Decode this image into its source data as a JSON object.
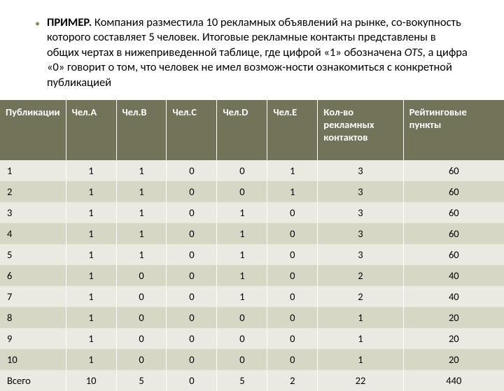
{
  "bullet": {
    "prefix": "ПРИМЕР.",
    "text_part1": " Компания разместила 10 рекламных объявлений на рынке, со-вокупность которого составляет 5 человек. Итоговые рекламные контакты представлены в общих чертах в нижеприведенной таблице, где цифрой «1» обозначена ",
    "italic": "OTS",
    "text_part2": ", а цифра «0» говорит о том, что человек не имел возмож-ности ознакомиться с конкретной публикацией"
  },
  "table": {
    "columns": [
      "Публикации",
      "Чел.A",
      "Чел.B",
      "Чел.C",
      "Чел.D",
      "Чел.E",
      "Кол-во рекламных контактов",
      "Рейтинговые пункты"
    ],
    "col_widths": [
      "13%",
      "10%",
      "10%",
      "10%",
      "10%",
      "10%",
      "17%",
      "20%"
    ],
    "header_bg": "#73735a",
    "header_color": "#ffffff",
    "row_odd_bg": "#eaeae1",
    "row_even_bg": "#d7d7c5",
    "rows": [
      [
        "1",
        "1",
        "1",
        "0",
        "0",
        "1",
        "3",
        "60"
      ],
      [
        "2",
        "1",
        "1",
        "0",
        "0",
        "1",
        "3",
        "60"
      ],
      [
        "3",
        "1",
        "1",
        "0",
        "1",
        "0",
        "3",
        "60"
      ],
      [
        "4",
        "1",
        "1",
        "0",
        "1",
        "0",
        "3",
        "60"
      ],
      [
        "5",
        "1",
        "1",
        "0",
        "1",
        "0",
        "3",
        "60"
      ],
      [
        "6",
        "1",
        "0",
        "0",
        "1",
        "0",
        "2",
        "40"
      ],
      [
        "7",
        "1",
        "0",
        "0",
        "1",
        "0",
        "2",
        "40"
      ],
      [
        "8",
        "1",
        "0",
        "0",
        "0",
        "0",
        "1",
        "20"
      ],
      [
        "9",
        "1",
        "0",
        "0",
        "0",
        "0",
        "1",
        "20"
      ],
      [
        "10",
        "1",
        "0",
        "0",
        "0",
        "0",
        "1",
        "20"
      ],
      [
        "Всего",
        "10",
        "5",
        "0",
        "5",
        "2",
        "22",
        "440"
      ]
    ]
  }
}
